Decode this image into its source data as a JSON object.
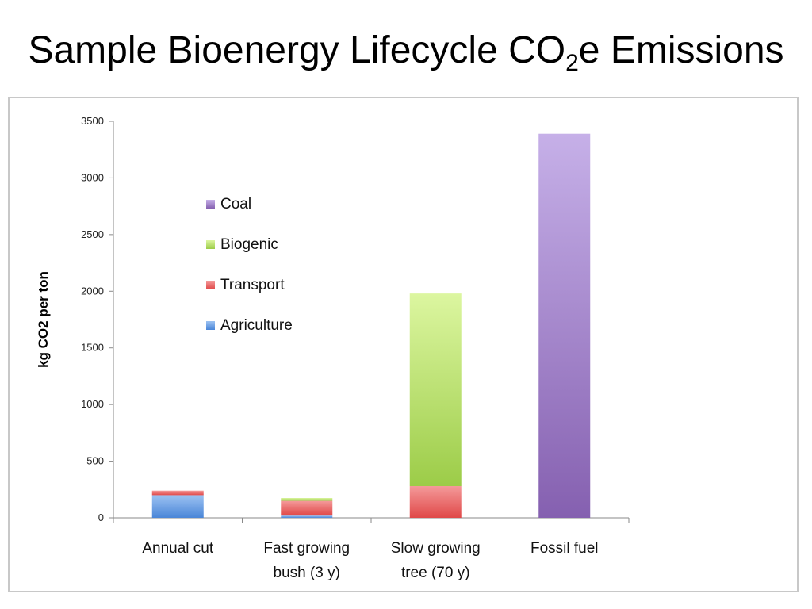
{
  "slide": {
    "title_main": "Sample Bioenergy Lifecycle CO",
    "title_sub": "2",
    "title_tail": "e Emissions"
  },
  "chart_data": {
    "type": "bar",
    "stacked": true,
    "categories": [
      [
        "Annual cut"
      ],
      [
        "Fast growing",
        "bush (3 y)"
      ],
      [
        "Slow growing",
        "tree (70 y)"
      ],
      [
        "Fossil fuel"
      ]
    ],
    "series": [
      {
        "name": "Agriculture",
        "color": "#4a86d8",
        "color_light": "#9cc2f2",
        "values": [
          200,
          20,
          0,
          0
        ]
      },
      {
        "name": "Transport",
        "color": "#e04848",
        "color_light": "#f49a9a",
        "values": [
          40,
          130,
          280,
          0
        ]
      },
      {
        "name": "Biogenic",
        "color": "#9ccc48",
        "color_light": "#dcf6a0",
        "values": [
          0,
          25,
          1700,
          0
        ]
      },
      {
        "name": "Coal",
        "color": "#8560b0",
        "color_light": "#c6b0e8",
        "values": [
          0,
          0,
          0,
          3390
        ]
      }
    ],
    "legend_order": [
      "Coal",
      "Biogenic",
      "Transport",
      "Agriculture"
    ],
    "ylabel": "kg CO2 per ton",
    "xlabel": "",
    "ylim": [
      0,
      3500
    ],
    "yticks": [
      0,
      500,
      1000,
      1500,
      2000,
      2500,
      3000,
      3500
    ],
    "grid": false,
    "legend_position": "upper-left inside plot"
  }
}
